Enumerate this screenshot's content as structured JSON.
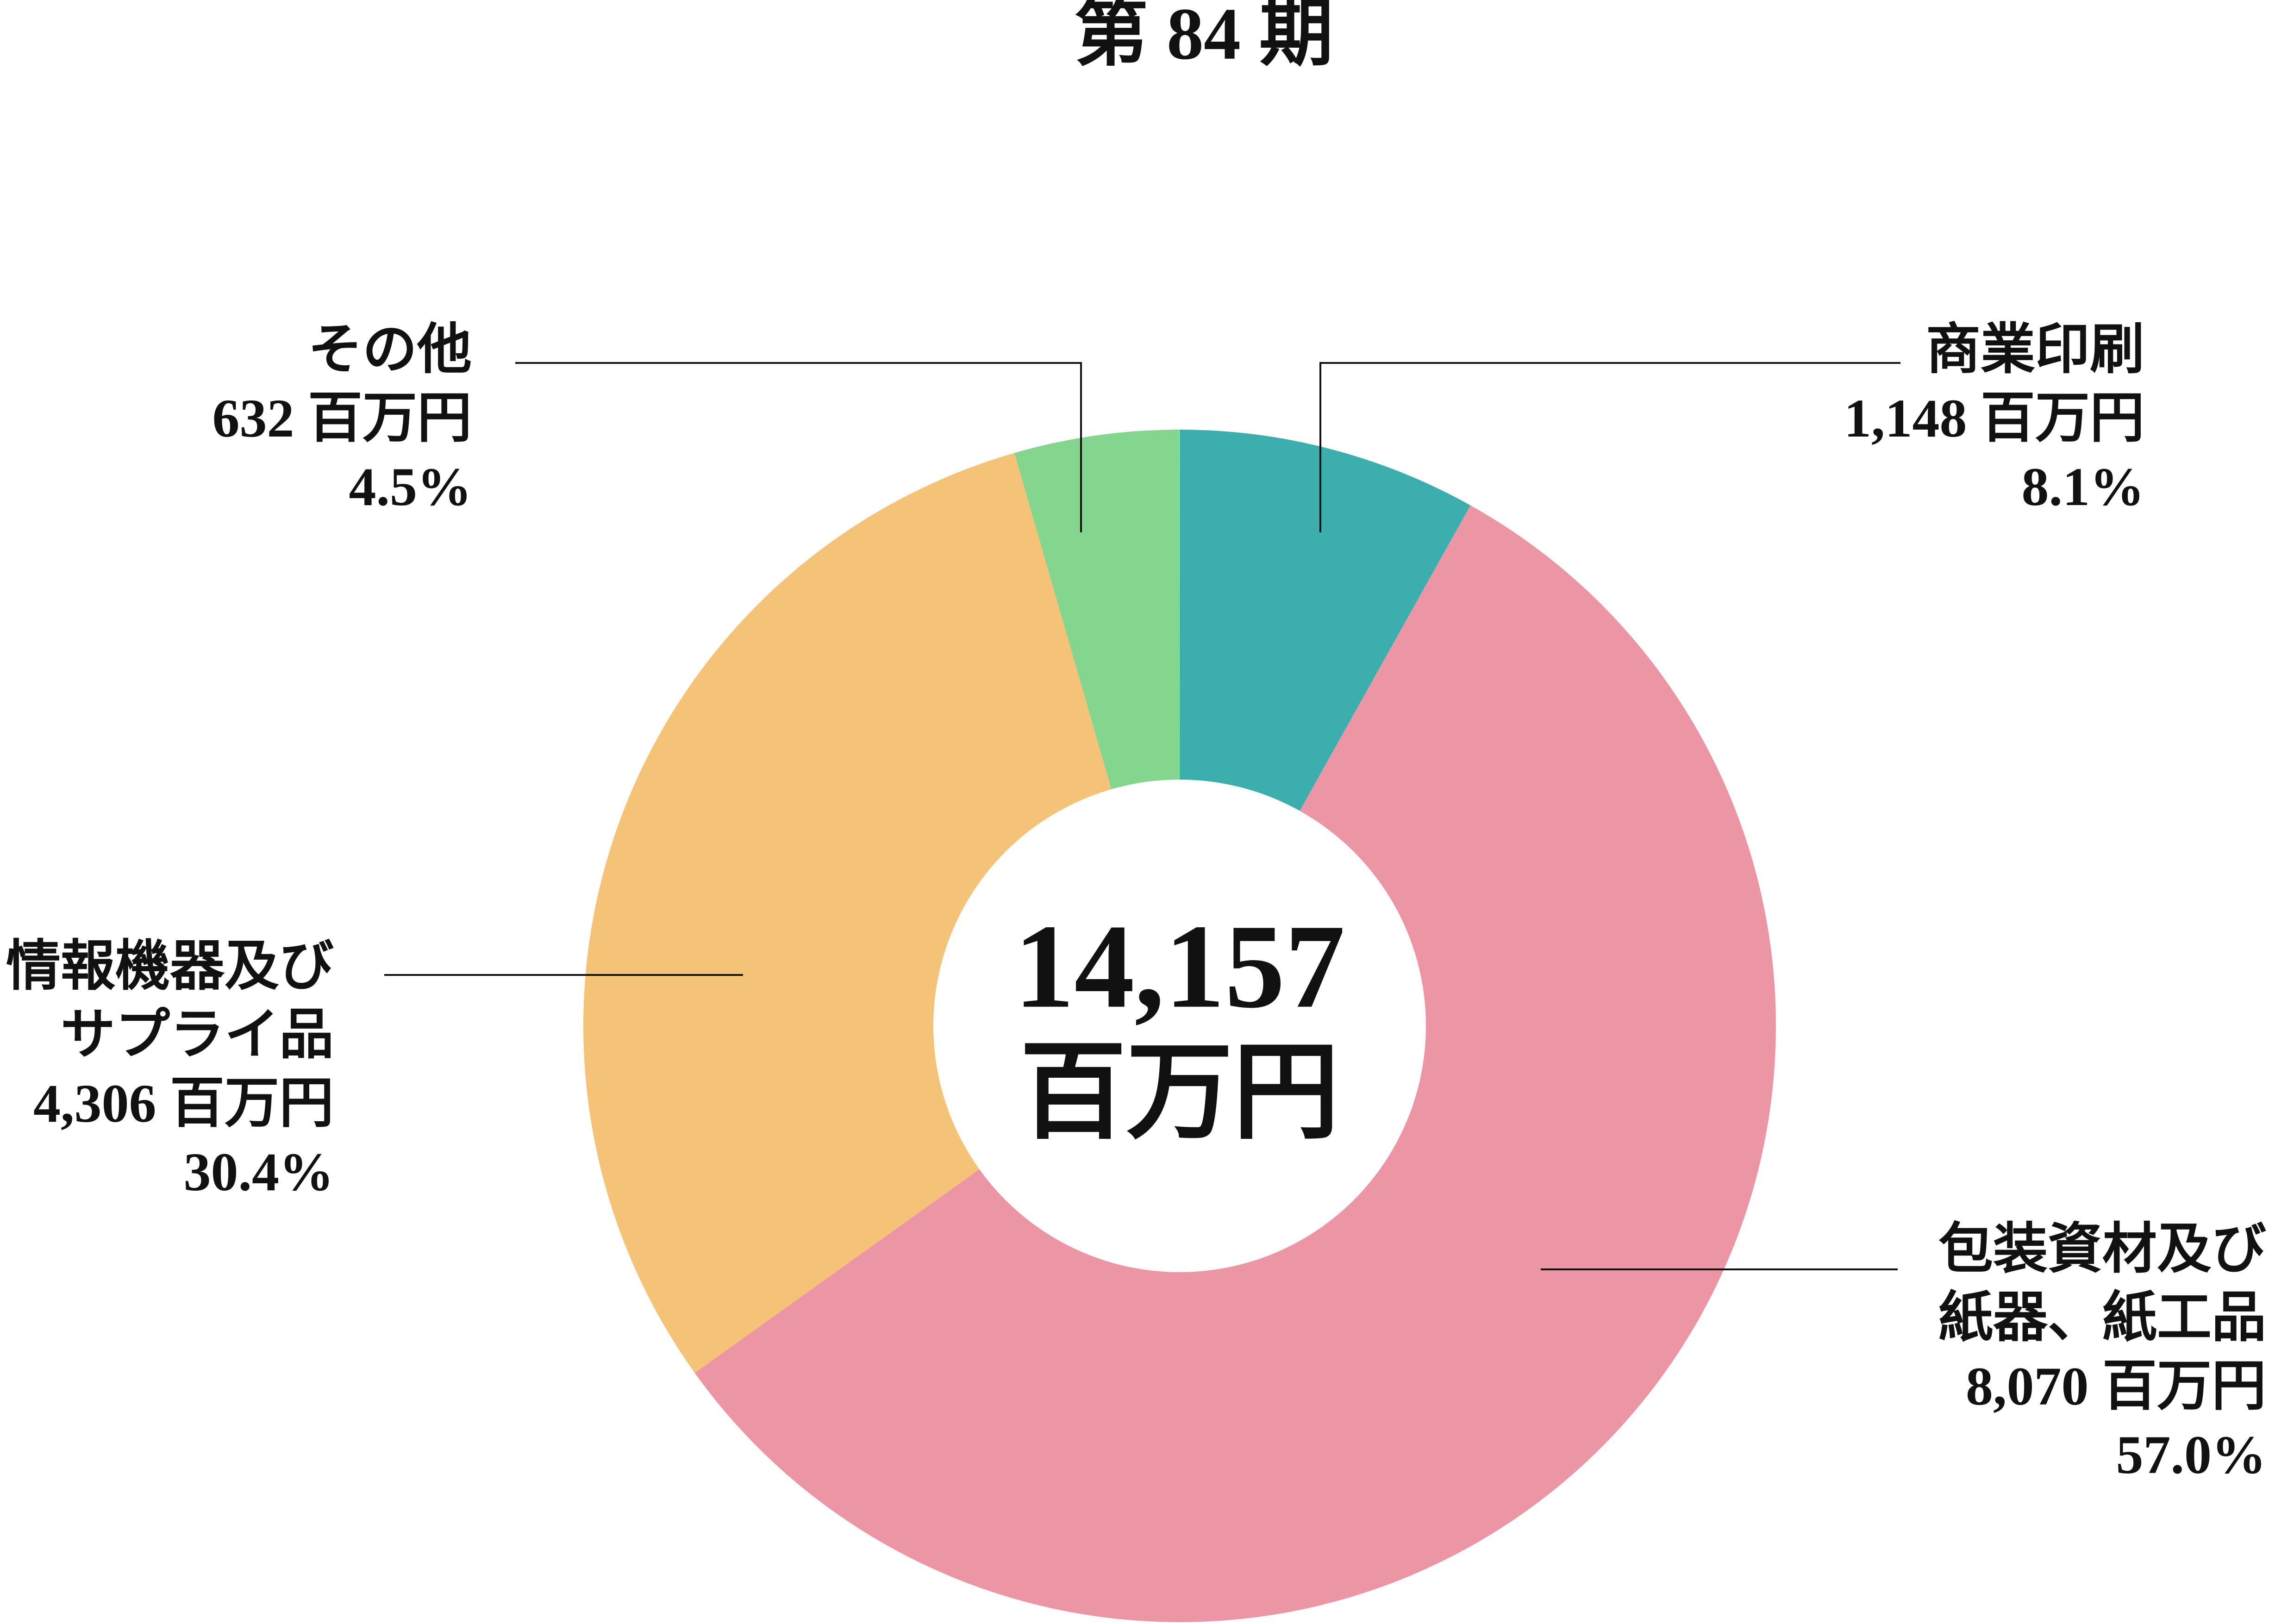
{
  "chart_data": {
    "type": "donut",
    "title": "第 84 期",
    "categories": [
      [
        "商業印刷"
      ],
      [
        "包装資材及び",
        "紙器、紙工品"
      ],
      [
        "情報機器及び",
        "サプライ品"
      ],
      [
        "その他"
      ]
    ],
    "values": [
      1148,
      8070,
      4306,
      632
    ],
    "value_labels": [
      "1,148 百万円",
      "8,070 百万円",
      "4,306 百万円",
      "632 百万円"
    ],
    "percent_labels": [
      "8.1%",
      "57.0%",
      "30.4%",
      "4.5%"
    ],
    "colors": [
      "#3daeae",
      "#ec95a5",
      "#f5c378",
      "#84d58e"
    ],
    "total": {
      "value": 14157,
      "label": "14,157",
      "unit": "百万円"
    }
  }
}
